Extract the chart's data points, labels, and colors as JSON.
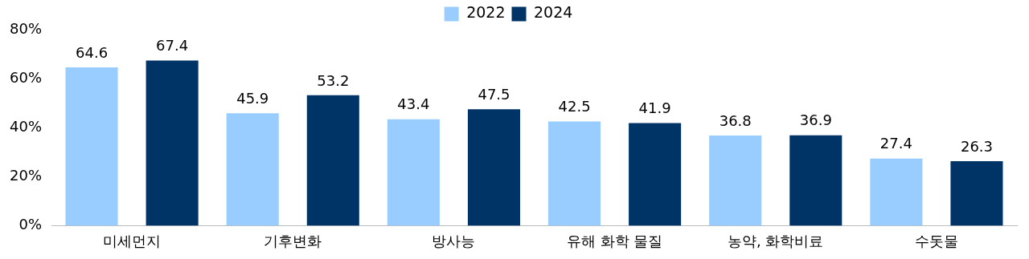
{
  "chart_data": {
    "type": "bar",
    "categories": [
      "미세먼지",
      "기후변화",
      "방사능",
      "유해 화학 물질",
      "농약, 화학비료",
      "수돗물"
    ],
    "series": [
      {
        "name": "2022",
        "color": "#99ccff",
        "values": [
          64.6,
          45.9,
          43.4,
          42.5,
          36.8,
          27.4
        ]
      },
      {
        "name": "2024",
        "color": "#003366",
        "values": [
          67.4,
          53.2,
          47.5,
          41.9,
          36.9,
          26.3
        ]
      }
    ],
    "ylim": [
      0,
      80
    ],
    "yticks": [
      {
        "value": 0,
        "label": "0%"
      },
      {
        "value": 20,
        "label": "20%"
      },
      {
        "value": 40,
        "label": "40%"
      },
      {
        "value": 60,
        "label": "60%"
      },
      {
        "value": 80,
        "label": "80%"
      }
    ],
    "grid": false,
    "legend": "top",
    "data_labels": true
  }
}
